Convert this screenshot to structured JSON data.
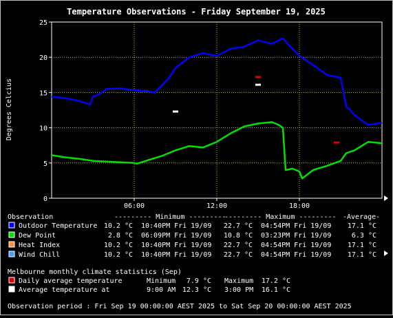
{
  "title": "Temperature Observations - Friday September 19, 2025",
  "colors": {
    "background": "#000000",
    "plot_bg": "#000000",
    "grid": "#c8c800",
    "axis": "#ffffff",
    "outdoor": "#0000ff",
    "dewpoint": "#00e000",
    "heat_index": "#ff8c40",
    "wind_chill": "#40a0ff",
    "daily_avg_marker": "#e00000",
    "avg_temp_marker": "#ffffff"
  },
  "chart_data": {
    "type": "line",
    "title": "Temperature Observations - Friday September 19, 2025",
    "ylabel": "Degrees Celcius",
    "xlabel": "",
    "ylim": [
      0,
      25
    ],
    "xlim": [
      0,
      24
    ],
    "y_ticks": [
      "0",
      "5",
      "10",
      "15",
      "20",
      "25"
    ],
    "x_ticks": [
      {
        "x": 6,
        "label": "06:00"
      },
      {
        "x": 12,
        "label": "12:00"
      },
      {
        "x": 18,
        "label": "18:00"
      }
    ],
    "grid": true,
    "series": [
      {
        "name": "Outdoor Temperature",
        "color": "#0000ff",
        "x": [
          0,
          1,
          2,
          2.8,
          3,
          3.5,
          4,
          5,
          6,
          7,
          7.5,
          8,
          8.5,
          9,
          10,
          11,
          12,
          13,
          14,
          15,
          16,
          16.8,
          17.2,
          18,
          19,
          20,
          21,
          21.4,
          21.7,
          22,
          23,
          24
        ],
        "y": [
          14.4,
          14.2,
          13.8,
          13.3,
          14.4,
          14.8,
          15.5,
          15.6,
          15.3,
          15.2,
          15.0,
          16.0,
          17.0,
          18.5,
          20.0,
          20.6,
          20.2,
          21.2,
          21.5,
          22.4,
          21.9,
          22.7,
          21.8,
          20.2,
          18.9,
          17.5,
          17.1,
          13.0,
          12.5,
          11.8,
          10.4,
          10.7
        ]
      },
      {
        "name": "Dew Point",
        "color": "#00e000",
        "x": [
          0,
          1,
          2,
          3,
          4,
          5,
          6,
          6.2,
          7,
          8,
          9,
          10,
          11,
          12,
          13,
          14,
          15,
          16,
          16.5,
          16.8,
          17,
          17.5,
          18,
          18.2,
          19,
          20,
          21,
          21.4,
          22,
          23,
          24
        ],
        "y": [
          6.1,
          5.8,
          5.6,
          5.3,
          5.2,
          5.1,
          5.0,
          4.9,
          5.4,
          6.0,
          6.8,
          7.4,
          7.2,
          8.0,
          9.2,
          10.2,
          10.6,
          10.8,
          10.4,
          10.0,
          4.0,
          4.2,
          3.8,
          2.8,
          4.0,
          4.6,
          5.3,
          6.4,
          6.8,
          8.0,
          7.8
        ]
      }
    ],
    "markers": [
      {
        "name": "Daily average temperature",
        "color": "#e00000",
        "points": [
          {
            "x": 15,
            "y": 17.2
          },
          {
            "x": 20.7,
            "y": 7.9
          }
        ]
      },
      {
        "name": "Average temperature at",
        "color": "#ffffff",
        "points": [
          {
            "x": 9,
            "y": 12.3
          },
          {
            "x": 15,
            "y": 16.1
          }
        ]
      }
    ]
  },
  "legend": {
    "header": {
      "observation": "Observation",
      "minimum": "--------- Minimum ---------",
      "maximum": "--------- Maximum ---------",
      "average": "-Average-"
    },
    "rows": [
      {
        "name": "Outdoor Temperature",
        "color": "#0000ff",
        "min_val": "10.2 °C",
        "min_time": "10:40PM Fri 19/09",
        "max_val": "22.7 °C",
        "max_time": "04:54PM Fri 19/09",
        "avg": "17.1 °C"
      },
      {
        "name": "Dew Point",
        "color": "#00e000",
        "min_val": "2.8 °C",
        "min_time": "06:09PM Fri 19/09",
        "max_val": "10.8 °C",
        "max_time": "03:23PM Fri 19/09",
        "avg": "6.3 °C"
      },
      {
        "name": "Heat Index",
        "color": "#ff8c40",
        "min_val": "10.2 °C",
        "min_time": "10:40PM Fri 19/09",
        "max_val": "22.7 °C",
        "max_time": "04:54PM Fri 19/09",
        "avg": "17.1 °C"
      },
      {
        "name": "Wind Chill",
        "color": "#40a0ff",
        "min_val": "10.2 °C",
        "min_time": "10:40PM Fri 19/09",
        "max_val": "22.7 °C",
        "max_time": "04:54PM Fri 19/09",
        "avg": "17.1 °C"
      }
    ]
  },
  "climate": {
    "header": "Melbourne monthly climate statistics (Sep)",
    "daily": {
      "label": "Daily average temperature",
      "min_label": "Minimum",
      "min_val": "7.9 °C",
      "max_label": "Maximum",
      "max_val": "17.2 °C",
      "color": "#e00000"
    },
    "avg_at": {
      "label": "Average temperature at",
      "t1": "9:00 AM",
      "v1": "12.3 °C",
      "t2": "3:00 PM",
      "v2": "16.1 °C",
      "color": "#ffffff"
    }
  },
  "period": "Observation period : Fri Sep 19 00:00:00 AEST 2025 to Sat Sep 20 00:00:00 AEST 2025"
}
